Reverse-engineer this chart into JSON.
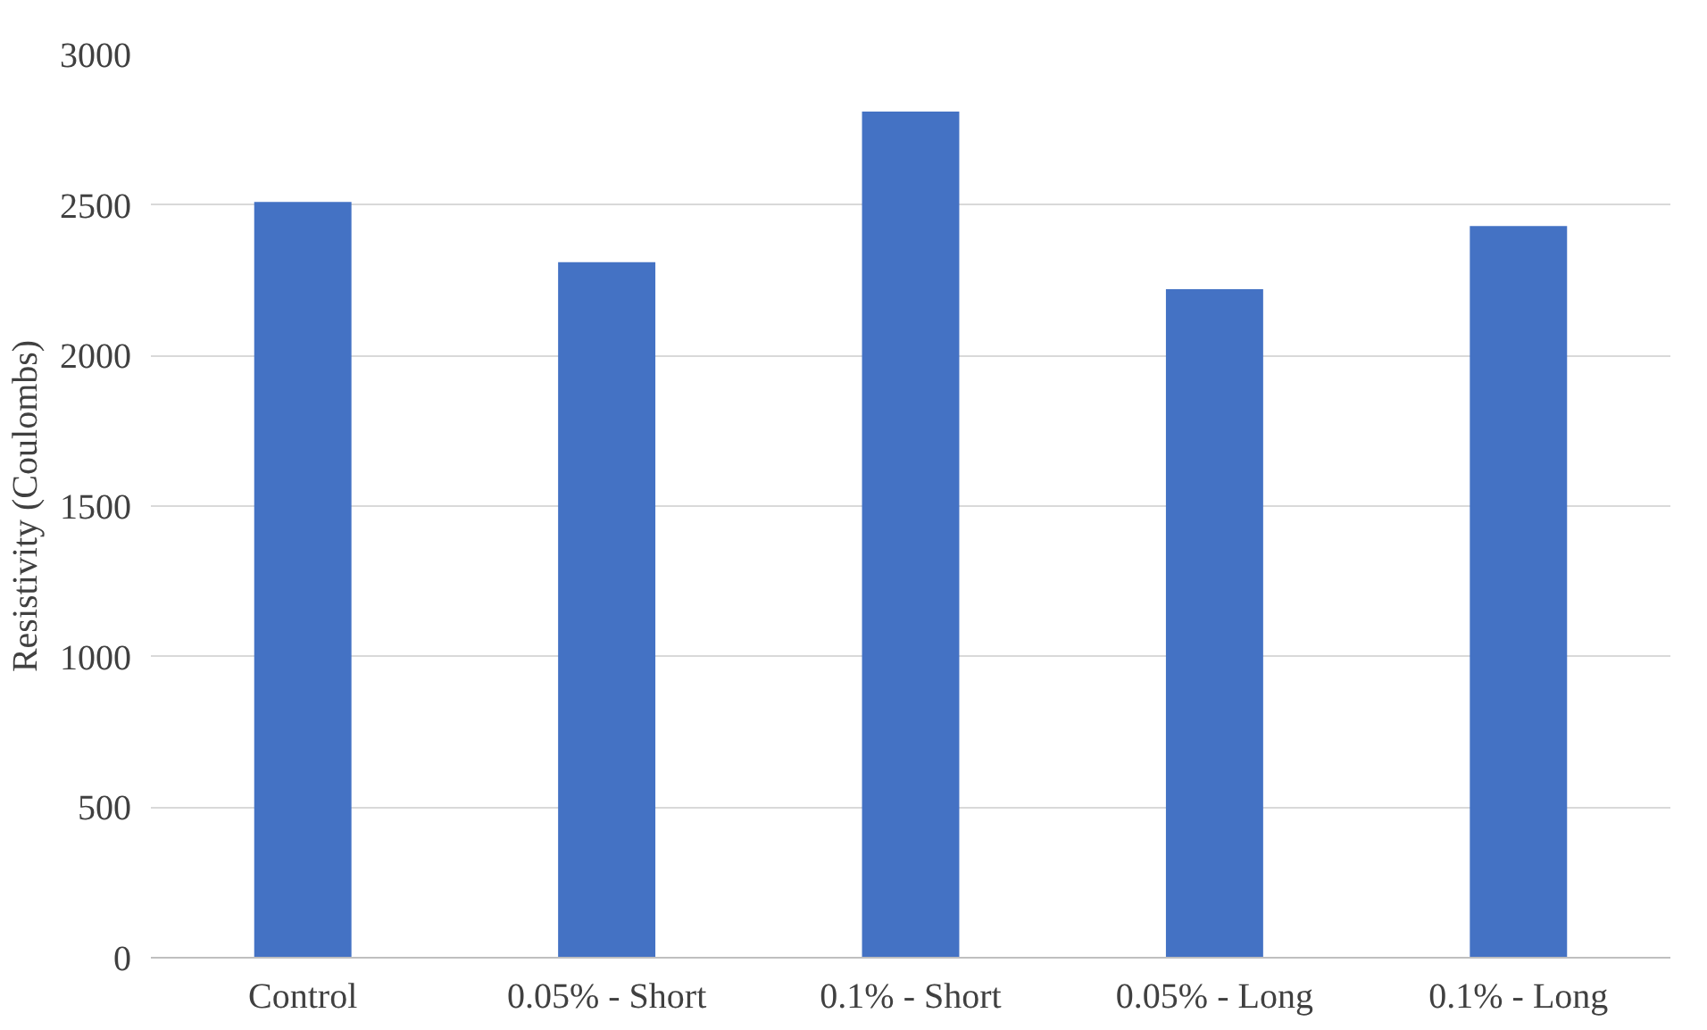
{
  "chart_data": {
    "type": "bar",
    "ylabel": "Resistivity (Coulombs)",
    "categories": [
      "Control",
      "0.05% - Short",
      "0.1% - Short",
      "0.05% - Long",
      "0.1% - Long"
    ],
    "values": [
      2510,
      2310,
      2810,
      2220,
      2430
    ],
    "color": "#4472c4",
    "ylim": [
      0,
      3000
    ],
    "yticks": [
      0,
      500,
      1000,
      1500,
      2000,
      2500,
      3000
    ],
    "grid": "y"
  }
}
